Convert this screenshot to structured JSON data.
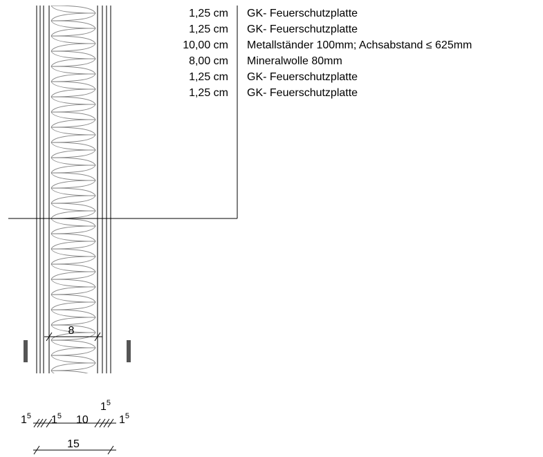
{
  "layers": [
    {
      "thickness": "1,25 cm",
      "material": "GK- Feuerschutzplatte"
    },
    {
      "thickness": "1,25 cm",
      "material": "GK- Feuerschutzplatte"
    },
    {
      "thickness": "10,00 cm",
      "material": "Metallständer 100mm; Achsabstand ≤ 625mm"
    },
    {
      "thickness": "8,00 cm",
      "material": "Mineralwolle 80mm"
    },
    {
      "thickness": "1,25 cm",
      "material": "GK- Feuerschutzplatte"
    },
    {
      "thickness": "1,25 cm",
      "material": "GK- Feuerschutzplatte"
    }
  ],
  "dimensions": {
    "insulation": "8",
    "left_board_outer": {
      "base": "1",
      "sup": "5"
    },
    "left_board_inner": {
      "base": "1",
      "sup": "5"
    },
    "stud": "10",
    "right_board_inner": {
      "base": "1",
      "sup": "5"
    },
    "right_board_outer": {
      "base": "1",
      "sup": "5"
    },
    "total": "15"
  },
  "colors": {
    "line": "#000000",
    "insulation_line": "#888888",
    "section_mark": "#555555"
  }
}
